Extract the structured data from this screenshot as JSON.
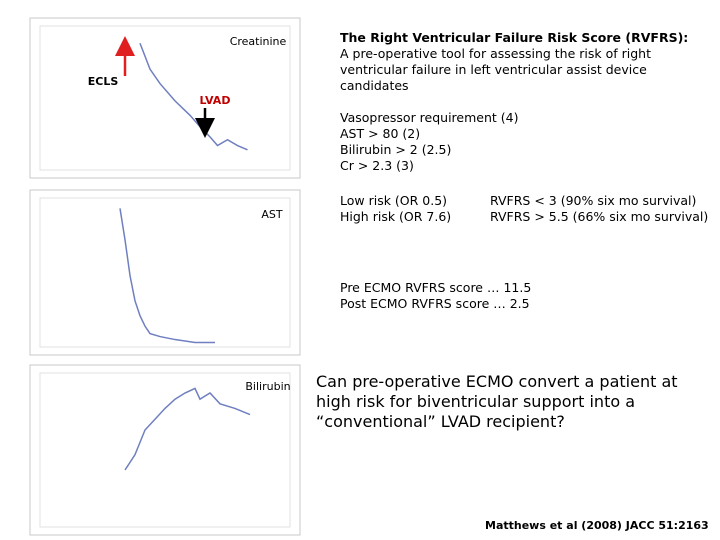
{
  "chart_data": [
    {
      "type": "line",
      "title": "Creatinine",
      "annotations": [
        "ECLS",
        "LVAD"
      ],
      "x": [
        40,
        44,
        48,
        54,
        60,
        64,
        68,
        71,
        75,
        79,
        83
      ],
      "values": [
        88,
        70,
        60,
        48,
        38,
        30,
        23,
        17,
        21,
        17,
        14
      ],
      "xlim": [
        0,
        100
      ],
      "ylim": [
        0,
        100
      ],
      "color": "#6f7fc0"
    },
    {
      "type": "line",
      "title": "AST",
      "x": [
        32,
        34,
        36,
        38,
        40,
        42,
        44,
        48,
        54,
        62,
        70
      ],
      "values": [
        93,
        72,
        48,
        31,
        21,
        14,
        9,
        7,
        5,
        3,
        3
      ],
      "xlim": [
        0,
        100
      ],
      "ylim": [
        0,
        100
      ],
      "color": "#6f7fc0"
    },
    {
      "type": "line",
      "title": "Bilirubin",
      "x": [
        34,
        38,
        42,
        46,
        50,
        54,
        58,
        62,
        64,
        68,
        72,
        78,
        84
      ],
      "values": [
        37,
        47,
        63,
        70,
        77,
        83,
        87,
        90,
        83,
        87,
        80,
        77,
        73
      ],
      "xlim": [
        0,
        100
      ],
      "ylim": [
        0,
        100
      ],
      "color": "#6f7fc0"
    }
  ],
  "rvfrs": {
    "title": "The Right Ventricular Failure Risk Score (RVFRS):",
    "description": "A pre-operative tool for assessing the risk of right ventricular failure in left ventricular assist device candidates",
    "criteria": [
      "Vasopressor requirement (4)",
      "AST > 80 (2)",
      "Bilirubin > 2 (2.5)",
      "Cr > 2.3 (3)"
    ],
    "risk": [
      [
        "Low risk (OR 0.5)",
        "RVFRS < 3 (90% six mo survival)"
      ],
      [
        "High risk (OR 7.6)",
        "RVFRS > 5.5 (66% six mo survival)"
      ]
    ],
    "scores": [
      "Pre ECMO RVFRS score … 11.5",
      "Post ECMO RVFRS score … 2.5"
    ]
  },
  "question": "Can pre-operative ECMO convert a patient at high risk for biventricular support into a “conventional” LVAD recipient?",
  "citation": "Matthews et al (2008) JACC 51:2163"
}
